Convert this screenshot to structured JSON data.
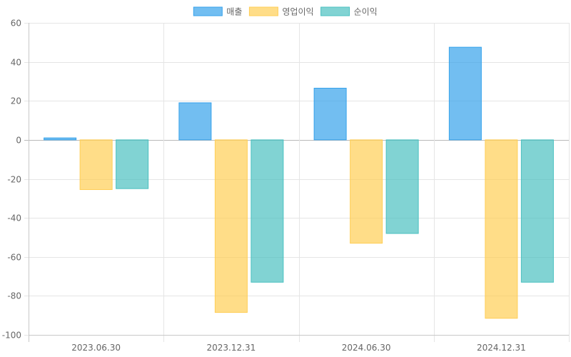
{
  "chart_data": {
    "type": "bar",
    "categories": [
      "2023.06.30",
      "2023.12.31",
      "2024.06.30",
      "2024.12.31"
    ],
    "series": [
      {
        "name": "매출",
        "values": [
          1,
          19,
          26.5,
          47.5
        ],
        "fill": "#36a2eb",
        "fill_opacity": 0.7,
        "stroke": "#36a2eb"
      },
      {
        "name": "영업이익",
        "values": [
          -25.5,
          -88.5,
          -53,
          -91.5
        ],
        "fill": "#ffce56",
        "fill_opacity": 0.7,
        "stroke": "#ffce56"
      },
      {
        "name": "순이익",
        "values": [
          -25,
          -73,
          -48,
          -73
        ],
        "fill": "#4bc0c0",
        "fill_opacity": 0.7,
        "stroke": "#4bc0c0"
      }
    ],
    "yticks": [
      60,
      40,
      20,
      0,
      -20,
      -40,
      -60,
      -80,
      -100
    ],
    "ylim": [
      -100,
      60
    ],
    "grid": true,
    "legend_position": "top-center"
  },
  "colors": {
    "grid": "#e5e5e5",
    "axis": "#c8c8c8",
    "zero_line": "#b8b8b8",
    "text": "#666666"
  }
}
